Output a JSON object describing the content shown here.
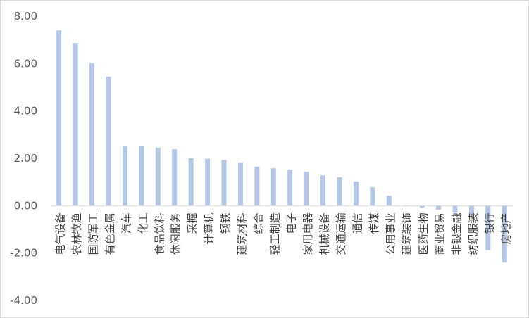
{
  "chart_data": {
    "type": "bar",
    "title": "",
    "xlabel": "",
    "ylabel": "",
    "ylim": [
      -4.0,
      8.0
    ],
    "yticks": [
      "8.00",
      "6.00",
      "4.00",
      "2.00",
      "0.00",
      "-2.00",
      "-4.00"
    ],
    "grid": false,
    "legend": "none",
    "bar_color": "#b4c7e7",
    "categories": [
      "电气设备",
      "农林牧渔",
      "国防军工",
      "有色金属",
      "汽车",
      "化工",
      "食品饮料",
      "休闲服务",
      "采掘",
      "计算机",
      "钢铁",
      "建筑材料",
      "综合",
      "轻工制造",
      "电子",
      "家用电器",
      "机械设备",
      "交通运输",
      "通信",
      "传媒",
      "公用事业",
      "建筑装饰",
      "医药生物",
      "商业贸易",
      "非银金融",
      "纺织服装",
      "银行",
      "房地产"
    ],
    "values": [
      7.4,
      6.87,
      6.02,
      5.45,
      2.5,
      2.5,
      2.45,
      2.38,
      2.0,
      1.98,
      1.93,
      1.82,
      1.65,
      1.58,
      1.52,
      1.43,
      1.28,
      1.2,
      1.02,
      0.78,
      0.42,
      -0.02,
      -0.08,
      -0.17,
      -0.3,
      -0.4,
      -1.88,
      -2.4
    ]
  }
}
